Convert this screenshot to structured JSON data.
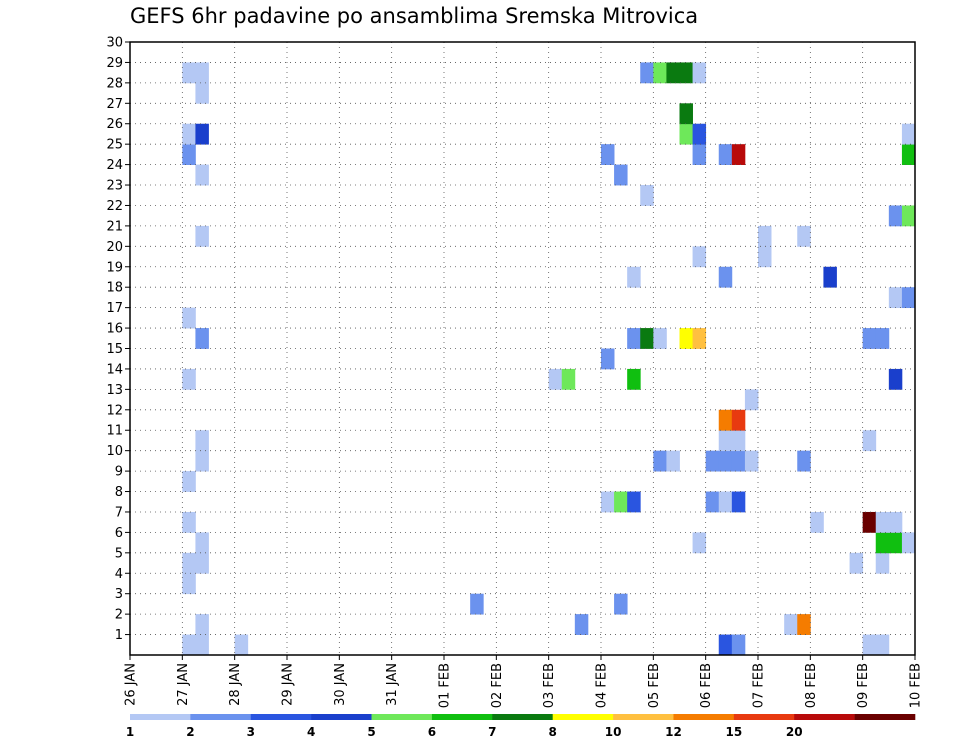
{
  "chart_data": {
    "type": "heatmap",
    "title": "GEFS 6hr padavine po ansamblima Sremska Mitrovica",
    "xlabel": "",
    "ylabel": "",
    "x_ticks": [
      "26 JAN",
      "27 JAN",
      "28 JAN",
      "29 JAN",
      "30 JAN",
      "31 JAN",
      "01 FEB",
      "02 FEB",
      "03 FEB",
      "04 FEB",
      "05 FEB",
      "06 FEB",
      "07 FEB",
      "08 FEB",
      "09 FEB",
      "10 FEB"
    ],
    "y_ticks": [
      "1",
      "2",
      "3",
      "4",
      "5",
      "6",
      "7",
      "8",
      "9",
      "10",
      "11",
      "12",
      "13",
      "14",
      "15",
      "16",
      "17",
      "18",
      "19",
      "20",
      "21",
      "22",
      "23",
      "24",
      "25",
      "26",
      "27",
      "28",
      "29",
      "30"
    ],
    "x_range_days": [
      0,
      15
    ],
    "y_range": [
      0,
      30
    ],
    "grid": true,
    "legend": {
      "position": "bottom",
      "bins": [
        {
          "color": "#b4c8f4",
          "label": "1"
        },
        {
          "color": "#6b92ee",
          "label": "2"
        },
        {
          "color": "#2a55e0",
          "label": "3"
        },
        {
          "color": "#1a3fcc",
          "label": "4"
        },
        {
          "color": "#6ee85a",
          "label": "5"
        },
        {
          "color": "#10bf10",
          "label": "6"
        },
        {
          "color": "#0a7a10",
          "label": "7"
        },
        {
          "color": "#ffff00",
          "label": "8"
        },
        {
          "color": "#ffc040",
          "label": "10"
        },
        {
          "color": "#f57c00",
          "label": "12"
        },
        {
          "color": "#e83a10",
          "label": "15"
        },
        {
          "color": "#b80a0a",
          "label": "20"
        },
        {
          "color": "#6a0000",
          "label": ""
        }
      ]
    },
    "cells": [
      {
        "t": 4,
        "m": 0,
        "c": 1
      },
      {
        "t": 5,
        "m": 0,
        "c": 1
      },
      {
        "t": 8,
        "m": 0,
        "c": 1
      },
      {
        "t": 45,
        "m": 0,
        "c": 3
      },
      {
        "t": 46,
        "m": 0,
        "c": 2
      },
      {
        "t": 56,
        "m": 0,
        "c": 1
      },
      {
        "t": 57,
        "m": 0,
        "c": 1
      },
      {
        "t": 5,
        "m": 1,
        "c": 1
      },
      {
        "t": 34,
        "m": 1,
        "c": 2
      },
      {
        "t": 50,
        "m": 1,
        "c": 1
      },
      {
        "t": 51,
        "m": 1,
        "c": 10
      },
      {
        "t": 26,
        "m": 2,
        "c": 2
      },
      {
        "t": 37,
        "m": 2,
        "c": 2
      },
      {
        "t": 4,
        "m": 3,
        "c": 1
      },
      {
        "t": 4,
        "m": 4,
        "c": 1
      },
      {
        "t": 5,
        "m": 4,
        "c": 1
      },
      {
        "t": 55,
        "m": 4,
        "c": 1
      },
      {
        "t": 57,
        "m": 4,
        "c": 1
      },
      {
        "t": 5,
        "m": 5,
        "c": 1
      },
      {
        "t": 43,
        "m": 5,
        "c": 1
      },
      {
        "t": 57,
        "m": 5,
        "c": 6
      },
      {
        "t": 58,
        "m": 5,
        "c": 6
      },
      {
        "t": 59,
        "m": 5,
        "c": 1
      },
      {
        "t": 4,
        "m": 6,
        "c": 1
      },
      {
        "t": 52,
        "m": 6,
        "c": 1
      },
      {
        "t": 56,
        "m": 6,
        "c": 13
      },
      {
        "t": 57,
        "m": 6,
        "c": 1
      },
      {
        "t": 58,
        "m": 6,
        "c": 1
      },
      {
        "t": 36,
        "m": 7,
        "c": 1
      },
      {
        "t": 37,
        "m": 7,
        "c": 5
      },
      {
        "t": 38,
        "m": 7,
        "c": 3
      },
      {
        "t": 44,
        "m": 7,
        "c": 2
      },
      {
        "t": 45,
        "m": 7,
        "c": 1
      },
      {
        "t": 46,
        "m": 7,
        "c": 3
      },
      {
        "t": 4,
        "m": 8,
        "c": 1
      },
      {
        "t": 5,
        "m": 9,
        "c": 1
      },
      {
        "t": 40,
        "m": 9,
        "c": 2
      },
      {
        "t": 41,
        "m": 9,
        "c": 1
      },
      {
        "t": 44,
        "m": 9,
        "c": 2
      },
      {
        "t": 45,
        "m": 9,
        "c": 2
      },
      {
        "t": 46,
        "m": 9,
        "c": 2
      },
      {
        "t": 47,
        "m": 9,
        "c": 1
      },
      {
        "t": 51,
        "m": 9,
        "c": 2
      },
      {
        "t": 5,
        "m": 10,
        "c": 1
      },
      {
        "t": 45,
        "m": 10,
        "c": 1
      },
      {
        "t": 46,
        "m": 10,
        "c": 1
      },
      {
        "t": 56,
        "m": 10,
        "c": 1
      },
      {
        "t": 45,
        "m": 11,
        "c": 10
      },
      {
        "t": 46,
        "m": 11,
        "c": 11
      },
      {
        "t": 47,
        "m": 12,
        "c": 1
      },
      {
        "t": 4,
        "m": 13,
        "c": 1
      },
      {
        "t": 32,
        "m": 13,
        "c": 1
      },
      {
        "t": 33,
        "m": 13,
        "c": 5
      },
      {
        "t": 38,
        "m": 13,
        "c": 6
      },
      {
        "t": 58,
        "m": 13,
        "c": 4
      },
      {
        "t": 36,
        "m": 14,
        "c": 2
      },
      {
        "t": 5,
        "m": 15,
        "c": 2
      },
      {
        "t": 38,
        "m": 15,
        "c": 2
      },
      {
        "t": 39,
        "m": 15,
        "c": 7
      },
      {
        "t": 40,
        "m": 15,
        "c": 1
      },
      {
        "t": 42,
        "m": 15,
        "c": 8
      },
      {
        "t": 43,
        "m": 15,
        "c": 9
      },
      {
        "t": 56,
        "m": 15,
        "c": 2
      },
      {
        "t": 57,
        "m": 15,
        "c": 2
      },
      {
        "t": 4,
        "m": 16,
        "c": 1
      },
      {
        "t": 58,
        "m": 17,
        "c": 1
      },
      {
        "t": 59,
        "m": 17,
        "c": 2
      },
      {
        "t": 38,
        "m": 18,
        "c": 1
      },
      {
        "t": 45,
        "m": 18,
        "c": 2
      },
      {
        "t": 53,
        "m": 18,
        "c": 4
      },
      {
        "t": 43,
        "m": 19,
        "c": 1
      },
      {
        "t": 48,
        "m": 19,
        "c": 1
      },
      {
        "t": 5,
        "m": 20,
        "c": 1
      },
      {
        "t": 48,
        "m": 20,
        "c": 1
      },
      {
        "t": 51,
        "m": 20,
        "c": 1
      },
      {
        "t": 58,
        "m": 21,
        "c": 2
      },
      {
        "t": 59,
        "m": 21,
        "c": 5
      },
      {
        "t": 39,
        "m": 22,
        "c": 1
      },
      {
        "t": 5,
        "m": 23,
        "c": 1
      },
      {
        "t": 37,
        "m": 23,
        "c": 2
      },
      {
        "t": 4,
        "m": 24,
        "c": 2
      },
      {
        "t": 36,
        "m": 24,
        "c": 2
      },
      {
        "t": 43,
        "m": 24,
        "c": 2
      },
      {
        "t": 45,
        "m": 24,
        "c": 2
      },
      {
        "t": 46,
        "m": 24,
        "c": 12
      },
      {
        "t": 59,
        "m": 24,
        "c": 6
      },
      {
        "t": 4,
        "m": 25,
        "c": 1
      },
      {
        "t": 5,
        "m": 25,
        "c": 4
      },
      {
        "t": 42,
        "m": 25,
        "c": 5
      },
      {
        "t": 43,
        "m": 25,
        "c": 3
      },
      {
        "t": 59,
        "m": 25,
        "c": 1
      },
      {
        "t": 42,
        "m": 26,
        "c": 7
      },
      {
        "t": 5,
        "m": 27,
        "c": 1
      },
      {
        "t": 4,
        "m": 28,
        "c": 1
      },
      {
        "t": 5,
        "m": 28,
        "c": 1
      },
      {
        "t": 39,
        "m": 28,
        "c": 2
      },
      {
        "t": 40,
        "m": 28,
        "c": 5
      },
      {
        "t": 41,
        "m": 28,
        "c": 7
      },
      {
        "t": 42,
        "m": 28,
        "c": 7
      },
      {
        "t": 43,
        "m": 28,
        "c": 1
      }
    ]
  }
}
